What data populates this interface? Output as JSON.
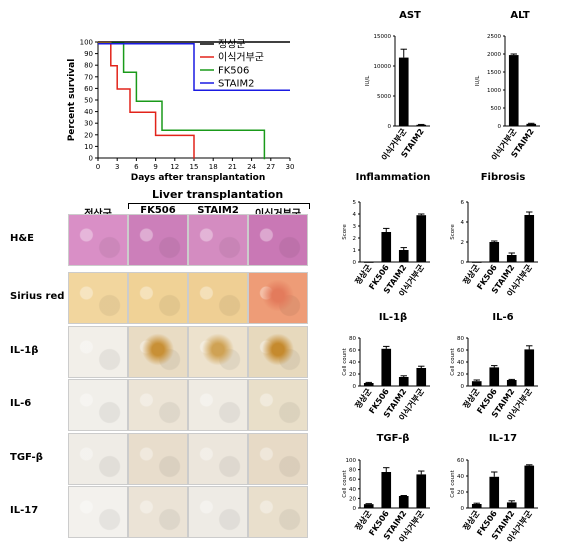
{
  "survival": {
    "ylabel": "Percent  survival",
    "xlabel": "Days  after transplantation",
    "xticks": [
      "0",
      "3",
      "6",
      "9",
      "12",
      "15",
      "18",
      "21",
      "24",
      "27",
      "30"
    ],
    "yticks": [
      "0",
      "10",
      "20",
      "30",
      "40",
      "50",
      "60",
      "70",
      "80",
      "90",
      "100"
    ],
    "legend": [
      {
        "label": "정상군",
        "color": "#000000"
      },
      {
        "label": "이식거부군",
        "color": "#e2231a"
      },
      {
        "label": "FK506",
        "color": "#1a9a1a"
      },
      {
        "label": "STAIM2",
        "color": "#1a1ae2"
      }
    ]
  },
  "histology": {
    "group_header": "Liver transplantation",
    "columns": [
      "정상군",
      "FK506",
      "STAIM2",
      "이식거부군"
    ],
    "rows": [
      "H&E",
      "Sirius red",
      "IL-1β",
      "IL-6",
      "TGF-β",
      "IL-17"
    ]
  },
  "chart_data": [
    {
      "type": "line",
      "title": "",
      "xlabel": "Days  after transplantation",
      "ylabel": "Percent  survival",
      "xlim": [
        0,
        30
      ],
      "ylim": [
        0,
        100
      ],
      "series": [
        {
          "name": "정상군",
          "color": "#000000",
          "points": [
            [
              0,
              100
            ],
            [
              30,
              100
            ]
          ]
        },
        {
          "name": "이식거부군",
          "color": "#e2231a",
          "points": [
            [
              0,
              100
            ],
            [
              2,
              100
            ],
            [
              2,
              80
            ],
            [
              3,
              80
            ],
            [
              3,
              60
            ],
            [
              5,
              60
            ],
            [
              5,
              40
            ],
            [
              9,
              40
            ],
            [
              9,
              20
            ],
            [
              15,
              20
            ],
            [
              15,
              0
            ]
          ]
        },
        {
          "name": "FK506",
          "color": "#1a9a1a",
          "points": [
            [
              0,
              100
            ],
            [
              4,
              100
            ],
            [
              4,
              75
            ],
            [
              6,
              75
            ],
            [
              6,
              50
            ],
            [
              10,
              50
            ],
            [
              10,
              25
            ],
            [
              26,
              25
            ],
            [
              26,
              0
            ]
          ]
        },
        {
          "name": "STAIM2",
          "color": "#1a1ae2",
          "points": [
            [
              0,
              100
            ],
            [
              15,
              100
            ],
            [
              15,
              60
            ],
            [
              30,
              60
            ]
          ]
        }
      ]
    },
    {
      "type": "bar",
      "title": "AST",
      "ylabel": "IU/L",
      "categories": [
        "이식거부군",
        "STAIM2"
      ],
      "values": [
        11400,
        200
      ],
      "errors": [
        1400,
        60
      ],
      "ylim": [
        0,
        15000
      ],
      "yticks": [
        "0",
        "5000",
        "10000",
        "15000"
      ]
    },
    {
      "type": "bar",
      "title": "ALT",
      "ylabel": "IU/L",
      "categories": [
        "이식거부군",
        "STAIM2"
      ],
      "values": [
        1970,
        60
      ],
      "errors": [
        30,
        15
      ],
      "ylim": [
        0,
        2500
      ],
      "yticks": [
        "0",
        "500",
        "1000",
        "1500",
        "2000",
        "2500"
      ]
    },
    {
      "type": "bar",
      "title": "Inflammation",
      "ylabel": "Score",
      "categories": [
        "정상군",
        "FK506",
        "STAIM2",
        "이식거부군"
      ],
      "values": [
        0,
        2.5,
        1.0,
        3.9
      ],
      "errors": [
        0,
        0.3,
        0.2,
        0.1
      ],
      "ylim": [
        0,
        5
      ],
      "yticks": [
        "0",
        "1",
        "2",
        "3",
        "4",
        "5"
      ]
    },
    {
      "type": "bar",
      "title": "Fibrosis",
      "ylabel": "Score",
      "categories": [
        "정상군",
        "FK506",
        "STAIM2",
        "이식거부군"
      ],
      "values": [
        0,
        2.0,
        0.7,
        4.7
      ],
      "errors": [
        0,
        0.1,
        0.2,
        0.3
      ],
      "ylim": [
        0,
        6
      ],
      "yticks": [
        "0",
        "2",
        "4",
        "6"
      ]
    },
    {
      "type": "bar",
      "title": "IL-1β",
      "ylabel": "Cell count",
      "categories": [
        "정상군",
        "FK506",
        "STAIM2",
        "이식거부군"
      ],
      "values": [
        5,
        62,
        15,
        30
      ],
      "errors": [
        1,
        4,
        2,
        3
      ],
      "ylim": [
        0,
        80
      ],
      "yticks": [
        "0",
        "20",
        "40",
        "60",
        "80"
      ]
    },
    {
      "type": "bar",
      "title": "IL-6",
      "ylabel": "Cell count",
      "categories": [
        "정상군",
        "FK506",
        "STAIM2",
        "이식거부군"
      ],
      "values": [
        8,
        31,
        10,
        61
      ],
      "errors": [
        2,
        3,
        1,
        6
      ],
      "ylim": [
        0,
        80
      ],
      "yticks": [
        "0",
        "20",
        "40",
        "60",
        "80"
      ]
    },
    {
      "type": "bar",
      "title": "TGF-β",
      "ylabel": "Cell count",
      "categories": [
        "정상군",
        "FK506",
        "STAIM2",
        "이식거부군"
      ],
      "values": [
        8,
        75,
        25,
        70
      ],
      "errors": [
        1,
        9,
        1,
        7
      ],
      "ylim": [
        0,
        100
      ],
      "yticks": [
        "0",
        "20",
        "40",
        "60",
        "80",
        "100"
      ]
    },
    {
      "type": "bar",
      "title": "IL-17",
      "ylabel": "Cell count",
      "categories": [
        "정상군",
        "FK506",
        "STAIM2",
        "이식거부군"
      ],
      "values": [
        5,
        39,
        7,
        53
      ],
      "errors": [
        1,
        6,
        2,
        1
      ],
      "ylim": [
        0,
        60
      ],
      "yticks": [
        "0",
        "20",
        "40",
        "60"
      ]
    }
  ]
}
